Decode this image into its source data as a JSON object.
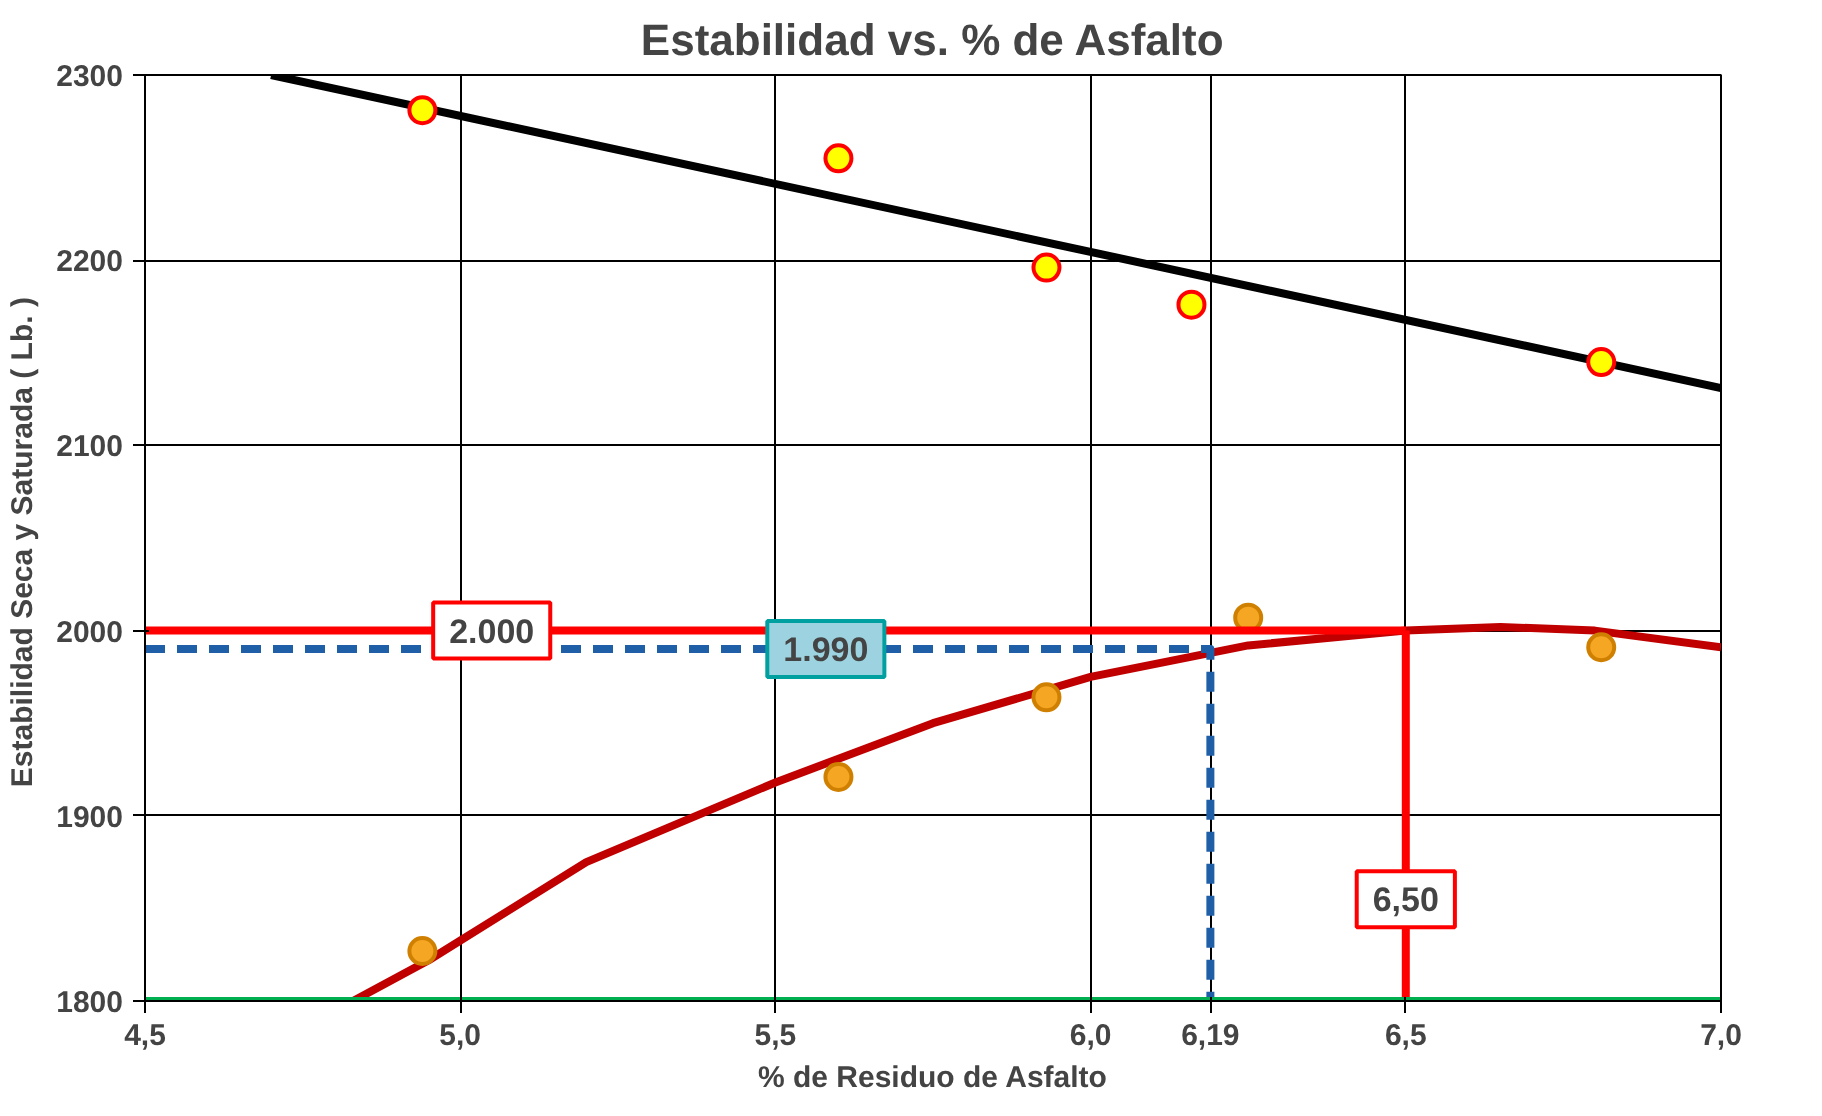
{
  "chart_data": {
    "type": "line",
    "title": "Estabilidad vs. % de Asfalto",
    "xlabel": "% de Residuo de Asfalto",
    "ylabel": "Estabilidad Seca y Saturada  ( Lb. )",
    "xlim": [
      4.5,
      7.0
    ],
    "ylim": [
      1800,
      2300
    ],
    "xticks": [
      {
        "value": 4.5,
        "label": "4,5"
      },
      {
        "value": 5.0,
        "label": "5,0"
      },
      {
        "value": 5.5,
        "label": "5,5"
      },
      {
        "value": 6.0,
        "label": "6,0"
      },
      {
        "value": 6.19,
        "label": "6,19"
      },
      {
        "value": 6.5,
        "label": "6,5"
      },
      {
        "value": 7.0,
        "label": "7,0"
      }
    ],
    "yticks": [
      1800,
      1900,
      2000,
      2100,
      2200,
      2300
    ],
    "grid": true,
    "series": [
      {
        "color": "#000000",
        "marker": "none",
        "x": [
          4.7,
          7.0
        ],
        "values": [
          2300,
          2131
        ]
      },
      {
        "color": "#c00000",
        "marker": "none",
        "x": [
          4.83,
          4.95,
          5.2,
          5.5,
          5.75,
          6.0,
          6.25,
          6.5,
          6.65,
          6.8,
          7.0
        ],
        "values": [
          1800,
          1822,
          1875,
          1918,
          1950,
          1975,
          1992,
          2000,
          2002,
          2000,
          1991
        ]
      },
      {
        "type": "scatter",
        "marker": "circle",
        "color": "#ffff00",
        "x": [
          4.94,
          5.6,
          5.93,
          6.16,
          6.81
        ],
        "values": [
          2281,
          2255,
          2196,
          2176,
          2145
        ]
      },
      {
        "type": "scatter",
        "marker": "circle",
        "color": "#f5a623",
        "x": [
          4.94,
          5.6,
          5.93,
          6.25,
          6.81
        ],
        "values": [
          1827,
          1921,
          1964,
          2007,
          1991
        ]
      },
      {
        "color": "#ff0000",
        "marker": "none",
        "x": [
          4.5,
          6.5
        ],
        "values": [
          2000,
          2000
        ]
      },
      {
        "color": "#1f5fa8",
        "marker": "none",
        "line_style": "dashed",
        "x": [
          4.5,
          6.19,
          6.19
        ],
        "values": [
          1990,
          1990,
          1800
        ]
      },
      {
        "color": "#ff0000",
        "marker": "none",
        "x": [
          6.5,
          6.5
        ],
        "values": [
          1800,
          2000
        ]
      },
      {
        "color": "#00b050",
        "marker": "none",
        "x": [
          4.5,
          7.0
        ],
        "values": [
          1800,
          1800
        ]
      }
    ],
    "annotations": [
      {
        "text": "2.000",
        "x": 5.05,
        "y": 2000
      },
      {
        "text": "1.990",
        "x": 5.58,
        "y": 1990
      },
      {
        "text": "6,50",
        "x": 6.5,
        "y": 1855
      }
    ]
  }
}
